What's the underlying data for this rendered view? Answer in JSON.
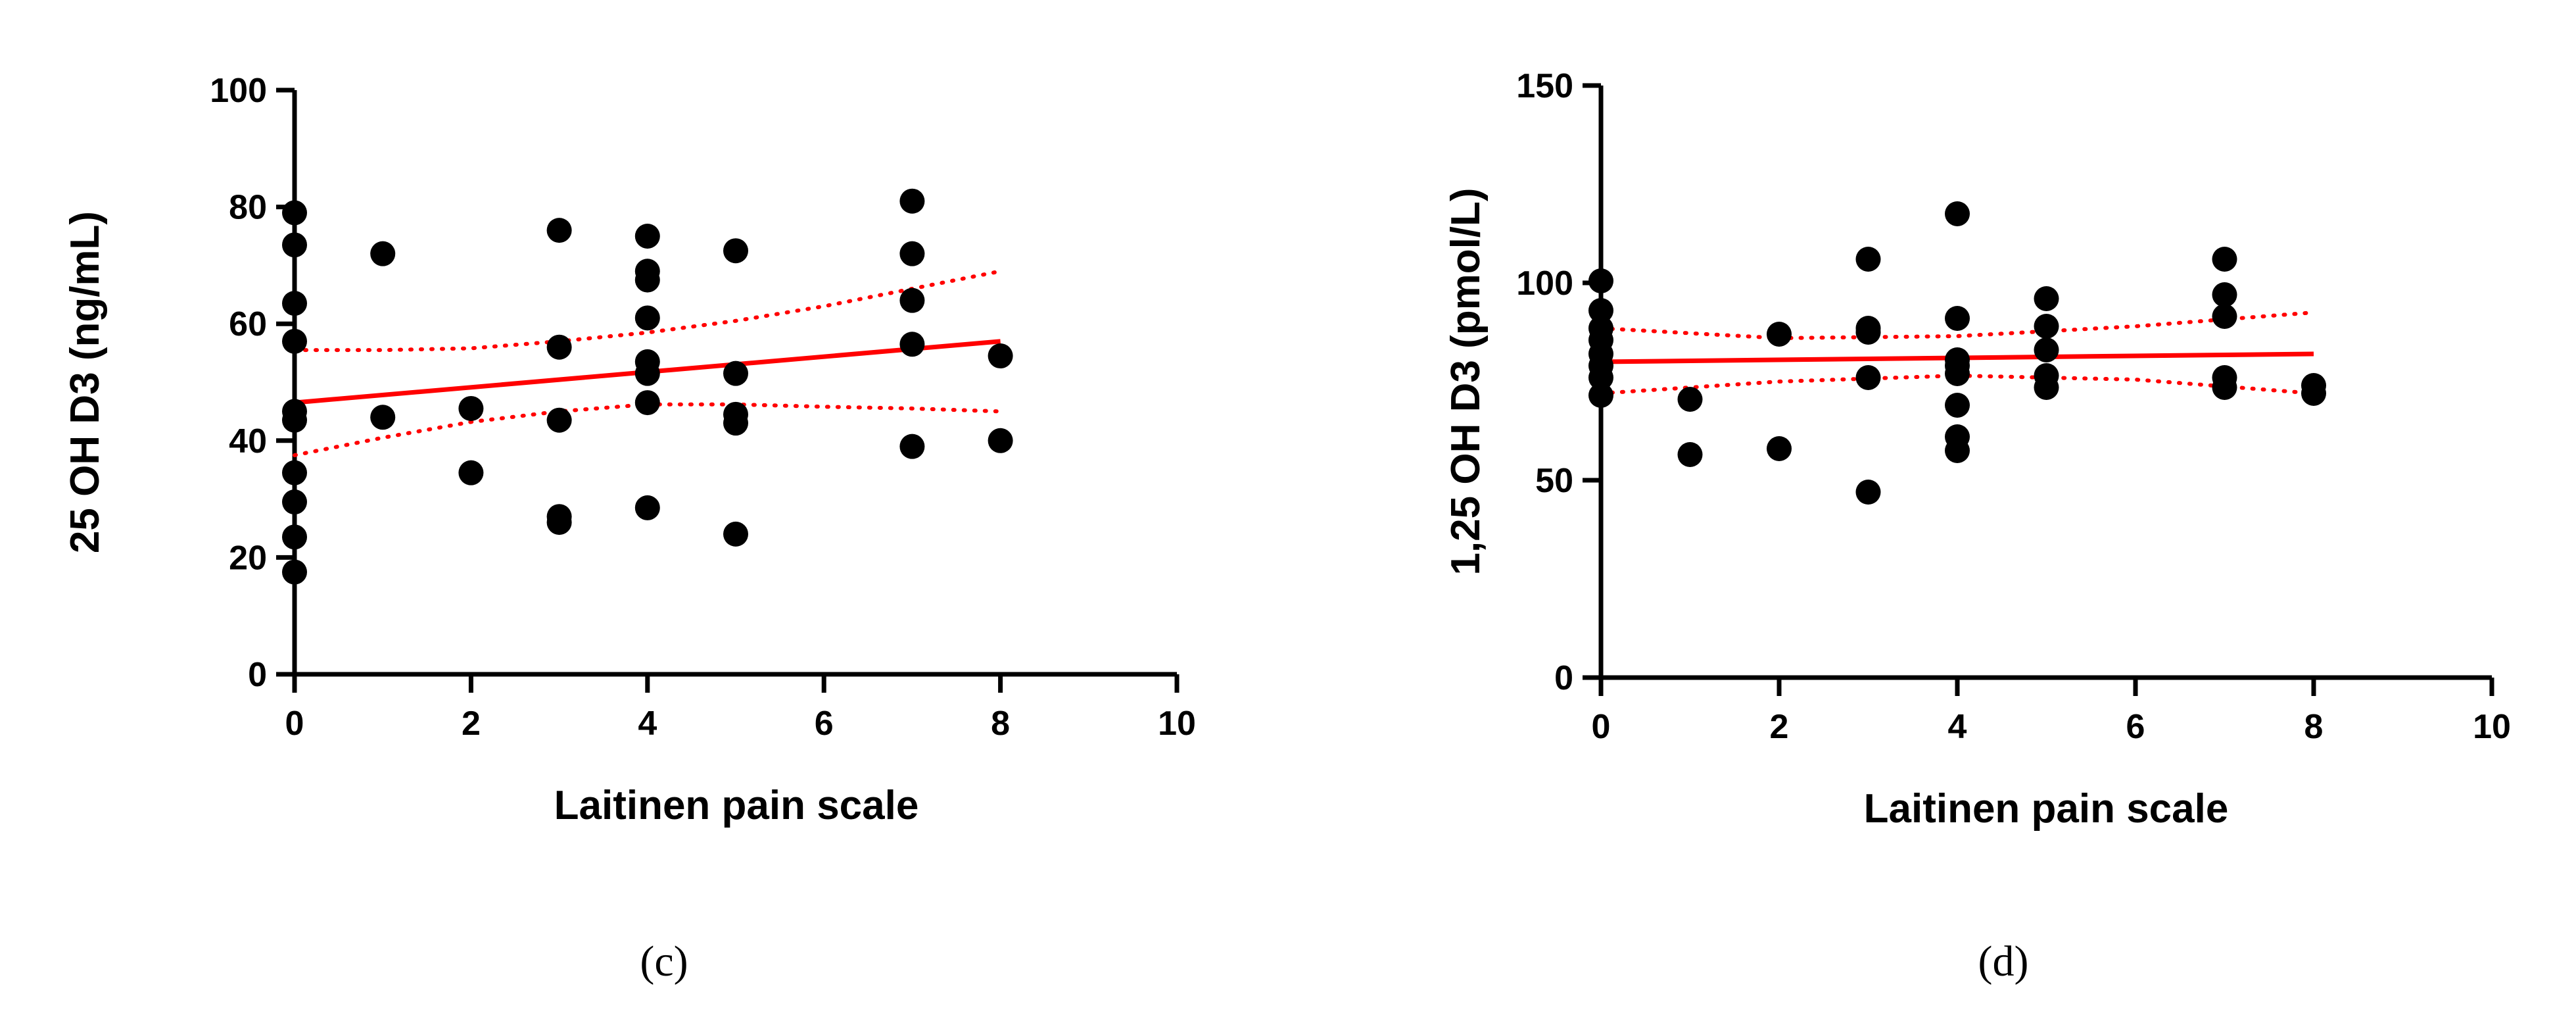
{
  "chart_data": [
    {
      "type": "scatter",
      "panel": "(c)",
      "xlabel": "Laitinen pain scale",
      "ylabel": "25 OH D3 (ng/mL)",
      "xlim": [
        0,
        10
      ],
      "ylim": [
        0,
        100
      ],
      "xticks": [
        0,
        2,
        4,
        6,
        8,
        10
      ],
      "yticks": [
        0,
        20,
        40,
        60,
        80,
        100
      ],
      "points": [
        [
          0,
          79
        ],
        [
          0,
          73.5
        ],
        [
          0,
          63.5
        ],
        [
          0,
          57
        ],
        [
          0,
          45
        ],
        [
          0,
          43.5
        ],
        [
          0,
          34.5
        ],
        [
          0,
          29.5
        ],
        [
          0,
          23.5
        ],
        [
          0,
          17.5
        ],
        [
          1,
          72
        ],
        [
          1,
          44
        ],
        [
          2,
          45.5
        ],
        [
          2,
          34.5
        ],
        [
          3,
          76
        ],
        [
          3,
          56
        ],
        [
          3,
          43.5
        ],
        [
          3,
          27
        ],
        [
          3,
          26
        ],
        [
          4,
          75
        ],
        [
          4,
          69
        ],
        [
          4,
          67.5
        ],
        [
          4,
          61
        ],
        [
          4,
          53.5
        ],
        [
          4,
          51.5
        ],
        [
          4,
          46.5
        ],
        [
          4,
          28.5
        ],
        [
          5,
          72.5
        ],
        [
          5,
          51.5
        ],
        [
          5,
          44.5
        ],
        [
          5,
          43
        ],
        [
          5,
          24
        ],
        [
          7,
          81
        ],
        [
          7,
          72
        ],
        [
          7,
          64
        ],
        [
          7,
          56.5
        ],
        [
          7,
          39
        ],
        [
          8,
          54.5
        ],
        [
          8,
          40
        ]
      ],
      "fit_line": {
        "x": [
          0,
          8
        ],
        "y": [
          46.5,
          57
        ]
      },
      "ci_upper": {
        "x": [
          0,
          1,
          2,
          3,
          4,
          5,
          6,
          7,
          8
        ],
        "y": [
          55.5,
          55.5,
          55.8,
          57,
          58.5,
          60.5,
          63,
          66,
          69
        ]
      },
      "ci_lower": {
        "x": [
          0,
          1,
          2,
          3,
          4,
          5,
          6,
          7,
          8
        ],
        "y": [
          37.5,
          40.5,
          43.2,
          45,
          46.2,
          46.2,
          45.8,
          45.5,
          45
        ]
      }
    },
    {
      "type": "scatter",
      "panel": "(d)",
      "xlabel": "Laitinen pain scale",
      "ylabel": "1,25 OH D3 (pmol/L)",
      "xlim": [
        0,
        10
      ],
      "ylim": [
        0,
        150
      ],
      "xticks": [
        0,
        2,
        4,
        6,
        8,
        10
      ],
      "yticks": [
        0,
        50,
        100,
        150
      ],
      "points": [
        [
          0,
          100.5
        ],
        [
          0,
          93
        ],
        [
          0,
          88.5
        ],
        [
          0,
          85.5
        ],
        [
          0,
          82
        ],
        [
          0,
          79
        ],
        [
          0,
          76
        ],
        [
          0,
          71.5
        ],
        [
          1,
          70.5
        ],
        [
          1,
          56.5
        ],
        [
          2,
          87
        ],
        [
          2,
          58
        ],
        [
          3,
          106
        ],
        [
          3,
          88.5
        ],
        [
          3,
          87.5
        ],
        [
          3,
          76
        ],
        [
          3,
          47
        ],
        [
          4,
          117.5
        ],
        [
          4,
          91
        ],
        [
          4,
          80.5
        ],
        [
          4,
          79
        ],
        [
          4,
          77
        ],
        [
          4,
          69
        ],
        [
          4,
          61
        ],
        [
          4,
          57.5
        ],
        [
          5,
          96
        ],
        [
          5,
          89
        ],
        [
          5,
          83
        ],
        [
          5,
          76.5
        ],
        [
          5,
          73.5
        ],
        [
          7,
          106
        ],
        [
          7,
          97
        ],
        [
          7,
          91.5
        ],
        [
          7,
          76
        ],
        [
          7,
          73.5
        ],
        [
          8,
          74
        ],
        [
          8,
          72
        ]
      ],
      "fit_line": {
        "x": [
          0,
          8
        ],
        "y": [
          80,
          82
        ]
      },
      "ci_upper": {
        "x": [
          0,
          2,
          4,
          6,
          8
        ],
        "y": [
          88.5,
          86,
          86.5,
          89,
          92.5
        ]
      },
      "ci_lower": {
        "x": [
          0,
          2,
          4,
          6,
          8
        ],
        "y": [
          72,
          75,
          76.5,
          75.5,
          72
        ]
      }
    }
  ]
}
